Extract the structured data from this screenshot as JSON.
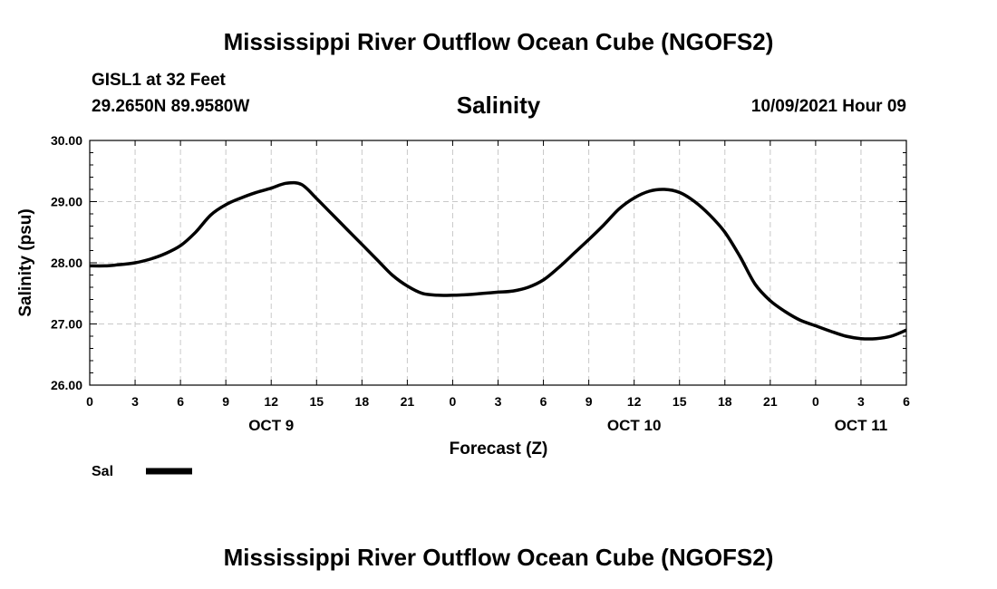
{
  "header": {
    "title_top": "Mississippi River Outflow Ocean Cube (NGOFS2)",
    "station": "GISL1 at 32 Feet",
    "coords": "29.2650N  89.9580W",
    "chart_title": "Salinity",
    "forecast_time": "10/09/2021 Hour 09",
    "title_bottom": "Mississippi River Outflow Ocean Cube (NGOFS2)"
  },
  "chart_data": {
    "type": "line",
    "title": "Salinity",
    "xlabel": "Forecast (Z)",
    "ylabel": "Salinity (psu)",
    "xlim": [
      0,
      54
    ],
    "ylim": [
      26.0,
      30.0
    ],
    "x_ticks": [
      0,
      3,
      6,
      9,
      12,
      15,
      18,
      21,
      24,
      27,
      30,
      33,
      36,
      39,
      42,
      45,
      48,
      51,
      54
    ],
    "x_tick_labels": [
      "0",
      "3",
      "6",
      "9",
      "12",
      "15",
      "18",
      "21",
      "0",
      "3",
      "6",
      "9",
      "12",
      "15",
      "18",
      "21",
      "0",
      "3",
      "6"
    ],
    "day_labels": [
      {
        "x": 12,
        "label": "OCT 9"
      },
      {
        "x": 36,
        "label": "OCT 10"
      },
      {
        "x": 51,
        "label": "OCT 11"
      }
    ],
    "y_ticks": [
      26.0,
      27.0,
      28.0,
      29.0,
      30.0
    ],
    "y_tick_labels": [
      "26.00",
      "27.00",
      "28.00",
      "29.00",
      "30.00"
    ],
    "grid": true,
    "legend_position": "bottom-left",
    "series": [
      {
        "name": "Sal",
        "color": "#000000",
        "x": [
          0,
          1,
          2,
          3,
          4,
          5,
          6,
          7,
          8,
          9,
          10,
          11,
          12,
          13,
          14,
          15,
          16,
          17,
          18,
          19,
          20,
          21,
          22,
          23,
          24,
          25,
          26,
          27,
          28,
          29,
          30,
          31,
          32,
          33,
          34,
          35,
          36,
          37,
          38,
          39,
          40,
          41,
          42,
          43,
          44,
          45,
          46,
          47,
          48,
          49,
          50,
          51,
          52,
          53,
          54
        ],
        "values": [
          27.95,
          27.95,
          27.97,
          28.0,
          28.06,
          28.15,
          28.28,
          28.5,
          28.78,
          28.95,
          29.06,
          29.15,
          29.22,
          29.3,
          29.28,
          29.05,
          28.8,
          28.55,
          28.3,
          28.05,
          27.8,
          27.62,
          27.5,
          27.47,
          27.47,
          27.48,
          27.5,
          27.52,
          27.54,
          27.6,
          27.72,
          27.92,
          28.15,
          28.38,
          28.62,
          28.88,
          29.06,
          29.17,
          29.2,
          29.15,
          29.0,
          28.78,
          28.5,
          28.1,
          27.65,
          27.38,
          27.2,
          27.06,
          26.97,
          26.88,
          26.8,
          26.76,
          26.76,
          26.8,
          26.9
        ]
      }
    ]
  }
}
